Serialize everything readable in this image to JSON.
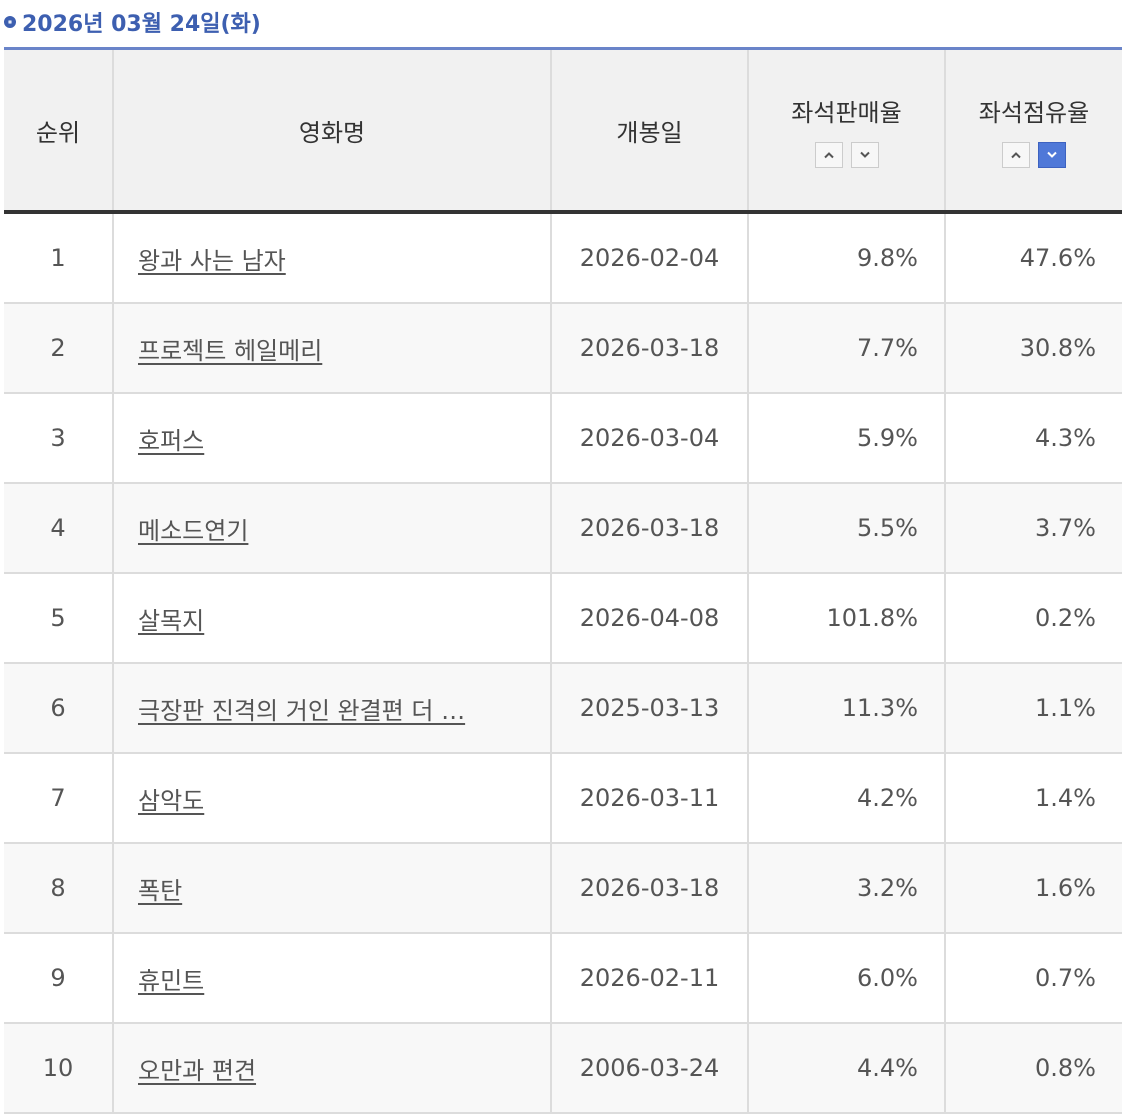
{
  "heading": {
    "date": "2026년 03월 24일(화)"
  },
  "columns": {
    "rank": "순위",
    "title": "영화명",
    "open_date": "개봉일",
    "sales_rate": "좌석판매율",
    "share_rate": "좌석점유율"
  },
  "sort": {
    "active_column": "share_rate",
    "active_direction": "desc"
  },
  "colors": {
    "accent": "#3d5fb0",
    "active_sort": "#4f78d8"
  },
  "rows": [
    {
      "rank": "1",
      "title": "왕과 사는 남자",
      "open_date": "2026-02-04",
      "sales_rate": "9.8%",
      "share_rate": "47.6%"
    },
    {
      "rank": "2",
      "title": "프로젝트 헤일메리",
      "open_date": "2026-03-18",
      "sales_rate": "7.7%",
      "share_rate": "30.8%"
    },
    {
      "rank": "3",
      "title": "호퍼스",
      "open_date": "2026-03-04",
      "sales_rate": "5.9%",
      "share_rate": "4.3%"
    },
    {
      "rank": "4",
      "title": "메소드연기",
      "open_date": "2026-03-18",
      "sales_rate": "5.5%",
      "share_rate": "3.7%"
    },
    {
      "rank": "5",
      "title": "살목지",
      "open_date": "2026-04-08",
      "sales_rate": "101.8%",
      "share_rate": "0.2%"
    },
    {
      "rank": "6",
      "title": "극장판 진격의 거인 완결편 더 …",
      "open_date": "2025-03-13",
      "sales_rate": "11.3%",
      "share_rate": "1.1%"
    },
    {
      "rank": "7",
      "title": "삼악도",
      "open_date": "2026-03-11",
      "sales_rate": "4.2%",
      "share_rate": "1.4%"
    },
    {
      "rank": "8",
      "title": "폭탄",
      "open_date": "2026-03-18",
      "sales_rate": "3.2%",
      "share_rate": "1.6%"
    },
    {
      "rank": "9",
      "title": "휴민트",
      "open_date": "2026-02-11",
      "sales_rate": "6.0%",
      "share_rate": "0.7%"
    },
    {
      "rank": "10",
      "title": "오만과 편견",
      "open_date": "2006-03-24",
      "sales_rate": "4.4%",
      "share_rate": "0.8%"
    }
  ]
}
